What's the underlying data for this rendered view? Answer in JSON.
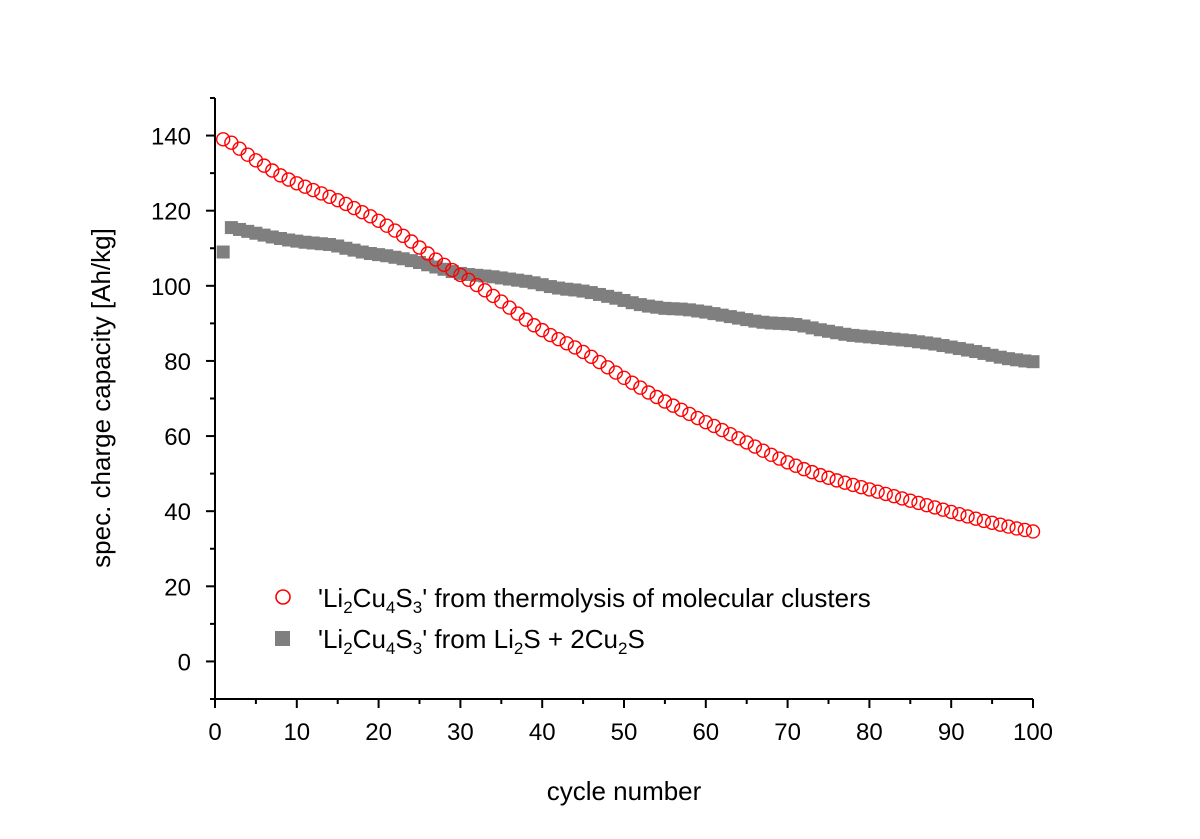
{
  "chart_data": {
    "type": "scatter",
    "xlabel": "cycle number",
    "ylabel": "spec. charge capacity [Ah/kg]",
    "xlim": [
      0,
      100
    ],
    "ylim": [
      -10,
      150
    ],
    "x_ticks": [
      0,
      10,
      20,
      30,
      40,
      50,
      60,
      70,
      80,
      90,
      100
    ],
    "y_ticks": [
      0,
      20,
      40,
      60,
      80,
      100,
      120,
      140
    ],
    "grid": false,
    "legend_position": "bottom-left",
    "series": [
      {
        "name": "'Li2Cu4S3' from thermolysis of molecular clusters",
        "legend_parts": [
          "'Li",
          "2",
          "Cu",
          "4",
          "S",
          "3",
          "' from thermolysis of molecular clusters"
        ],
        "marker": "open-circle",
        "color": "#ff0000",
        "x": [
          1,
          2,
          3,
          4,
          5,
          6,
          7,
          8,
          9,
          10,
          11,
          12,
          13,
          14,
          15,
          16,
          17,
          18,
          19,
          20,
          21,
          22,
          23,
          24,
          25,
          26,
          27,
          28,
          29,
          30,
          31,
          32,
          33,
          34,
          35,
          36,
          37,
          38,
          39,
          40,
          41,
          42,
          43,
          44,
          45,
          46,
          47,
          48,
          49,
          50,
          51,
          52,
          53,
          54,
          55,
          56,
          57,
          58,
          59,
          60,
          61,
          62,
          63,
          64,
          65,
          66,
          67,
          68,
          69,
          70,
          71,
          72,
          73,
          74,
          75,
          76,
          77,
          78,
          79,
          80,
          81,
          82,
          83,
          84,
          85,
          86,
          87,
          88,
          89,
          90,
          91,
          92,
          93,
          94,
          95,
          96,
          97,
          98,
          99,
          100
        ],
        "values": [
          139.0,
          138.1,
          136.5,
          134.9,
          133.4,
          132.0,
          130.7,
          129.4,
          128.3,
          127.3,
          126.4,
          125.5,
          124.6,
          123.7,
          122.8,
          121.8,
          120.7,
          119.6,
          118.5,
          117.3,
          116.0,
          114.7,
          113.3,
          111.8,
          110.2,
          108.6,
          107.0,
          105.6,
          104.2,
          102.9,
          101.6,
          100.2,
          98.8,
          97.3,
          95.8,
          94.2,
          92.6,
          91.0,
          89.5,
          88.2,
          86.9,
          85.8,
          84.7,
          83.6,
          82.4,
          81.1,
          79.7,
          78.3,
          76.9,
          75.5,
          74.2,
          72.9,
          71.6,
          70.4,
          69.2,
          68.1,
          67.0,
          65.9,
          64.8,
          63.7,
          62.7,
          61.6,
          60.5,
          59.4,
          58.3,
          57.2,
          56.1,
          55.0,
          54.0,
          53.0,
          52.1,
          51.2,
          50.4,
          49.6,
          48.9,
          48.2,
          47.6,
          47.0,
          46.4,
          45.8,
          45.2,
          44.6,
          44.0,
          43.4,
          42.8,
          42.2,
          41.6,
          41.0,
          40.4,
          39.8,
          39.2,
          38.6,
          38.0,
          37.4,
          36.9,
          36.4,
          35.9,
          35.4,
          35.0,
          34.6
        ]
      },
      {
        "name": "'Li2Cu4S3' from Li2S + 2Cu2S",
        "legend_parts": [
          "'Li",
          "2",
          "Cu",
          "4",
          "S",
          "3",
          "' from Li",
          "2",
          "S + 2Cu",
          "2",
          "S"
        ],
        "marker": "filled-square",
        "color": "#7f7f7f",
        "x": [
          1,
          2,
          3,
          4,
          5,
          6,
          7,
          8,
          9,
          10,
          11,
          12,
          13,
          14,
          15,
          16,
          17,
          18,
          19,
          20,
          21,
          22,
          23,
          24,
          25,
          26,
          27,
          28,
          29,
          30,
          31,
          32,
          33,
          34,
          35,
          36,
          37,
          38,
          39,
          40,
          41,
          42,
          43,
          44,
          45,
          46,
          47,
          48,
          49,
          50,
          51,
          52,
          53,
          54,
          55,
          56,
          57,
          58,
          59,
          60,
          61,
          62,
          63,
          64,
          65,
          66,
          67,
          68,
          69,
          70,
          71,
          72,
          73,
          74,
          75,
          76,
          77,
          78,
          79,
          80,
          81,
          82,
          83,
          84,
          85,
          86,
          87,
          88,
          89,
          90,
          91,
          92,
          93,
          94,
          95,
          96,
          97,
          98,
          99,
          100
        ],
        "values": [
          109.0,
          115.5,
          115.0,
          114.5,
          114.0,
          113.5,
          113.0,
          112.6,
          112.2,
          111.9,
          111.6,
          111.4,
          111.2,
          111.0,
          110.6,
          110.0,
          109.5,
          109.0,
          108.6,
          108.3,
          108.0,
          107.6,
          107.2,
          106.7,
          106.2,
          105.6,
          105.0,
          104.4,
          103.8,
          103.3,
          103.0,
          102.8,
          102.6,
          102.4,
          102.1,
          101.8,
          101.5,
          101.2,
          100.8,
          100.3,
          99.8,
          99.4,
          99.1,
          98.9,
          98.6,
          98.2,
          97.7,
          97.2,
          96.7,
          96.1,
          95.5,
          95.0,
          94.6,
          94.3,
          94.0,
          93.9,
          93.8,
          93.6,
          93.3,
          93.0,
          92.6,
          92.2,
          91.8,
          91.4,
          91.0,
          90.6,
          90.3,
          90.1,
          90.0,
          89.9,
          89.7,
          89.3,
          88.8,
          88.3,
          87.9,
          87.5,
          87.1,
          86.8,
          86.6,
          86.4,
          86.2,
          86.0,
          85.8,
          85.6,
          85.4,
          85.1,
          84.8,
          84.5,
          84.1,
          83.7,
          83.3,
          82.9,
          82.5,
          82.0,
          81.5,
          81.0,
          80.6,
          80.3,
          80.0,
          79.8
        ]
      }
    ]
  }
}
